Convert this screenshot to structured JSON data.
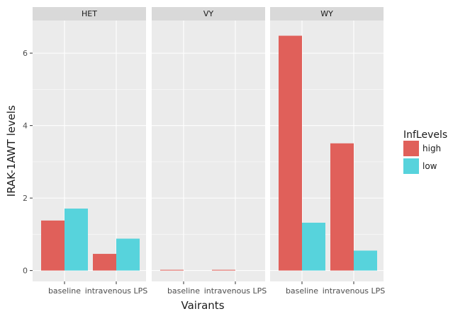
{
  "chart_data": {
    "type": "bar",
    "facet_labels": [
      "HET",
      "VY",
      "WY"
    ],
    "categories": [
      "baseline",
      "intravenous LPS"
    ],
    "xlabel": "Vairants",
    "ylabel": "IRAK-1AWT levels",
    "ylim": [
      -0.3,
      6.9
    ],
    "yticks": [
      0,
      2,
      4,
      6
    ],
    "grid": true,
    "legend": {
      "title": "InfLevels",
      "position": "right",
      "entries": [
        "high",
        "low"
      ]
    },
    "series": [
      {
        "name": "high",
        "color": "#e0605a",
        "values": {
          "HET": [
            1.38,
            0.46
          ],
          "VY": [
            0.02,
            0.02
          ],
          "WY": [
            6.48,
            3.51
          ]
        }
      },
      {
        "name": "low",
        "color": "#57d3dc",
        "values": {
          "HET": [
            1.71,
            0.88
          ],
          "VY": [
            0.0,
            0.0
          ],
          "WY": [
            1.32,
            0.55
          ]
        }
      }
    ],
    "colors": {
      "panel_background": "#ebebeb",
      "strip_background": "#d9d9d9",
      "grid": "#ffffff"
    }
  }
}
